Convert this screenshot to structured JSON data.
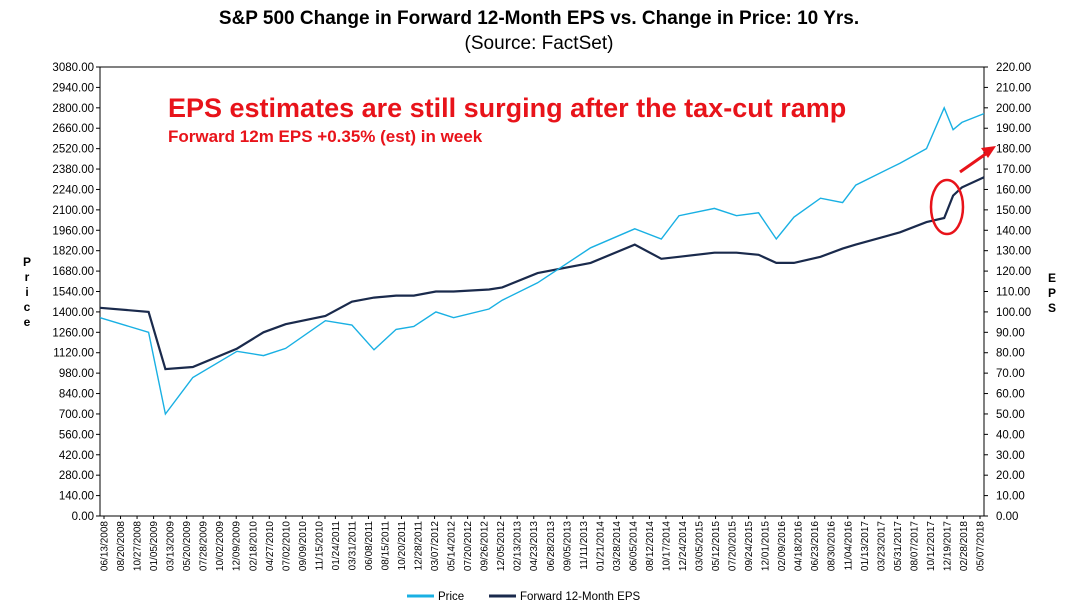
{
  "chart_data": {
    "type": "line",
    "title": "S&P 500 Change in Forward 12-Month EPS vs. Change in Price: 10 Yrs.",
    "subtitle": "(Source: FactSet)",
    "ylabel_left": "Price",
    "ylabel_right": "EPS",
    "ylim_left": [
      0,
      3080
    ],
    "ylim_right": [
      0,
      220
    ],
    "left_ticks": [
      "0.00",
      "140.00",
      "280.00",
      "420.00",
      "560.00",
      "700.00",
      "840.00",
      "980.00",
      "1120.00",
      "1260.00",
      "1400.00",
      "1540.00",
      "1680.00",
      "1820.00",
      "1960.00",
      "2100.00",
      "2240.00",
      "2380.00",
      "2520.00",
      "2660.00",
      "2800.00",
      "2940.00",
      "3080.00"
    ],
    "right_ticks": [
      "0.00",
      "10.00",
      "20.00",
      "30.00",
      "40.00",
      "50.00",
      "60.00",
      "70.00",
      "80.00",
      "90.00",
      "100.00",
      "110.00",
      "120.00",
      "130.00",
      "140.00",
      "150.00",
      "160.00",
      "170.00",
      "180.00",
      "190.00",
      "200.00",
      "210.00",
      "220.00"
    ],
    "x_ticks": [
      "06/13/2008",
      "08/20/2008",
      "10/27/2008",
      "01/05/2009",
      "03/13/2009",
      "05/20/2009",
      "07/28/2009",
      "10/02/2009",
      "12/09/2009",
      "02/18/2010",
      "04/27/2010",
      "07/02/2010",
      "09/09/2010",
      "11/15/2010",
      "01/24/2011",
      "03/31/2011",
      "06/08/2011",
      "08/15/2011",
      "10/20/2011",
      "12/28/2011",
      "03/07/2012",
      "05/14/2012",
      "07/20/2012",
      "09/26/2012",
      "12/05/2012",
      "02/13/2013",
      "04/23/2013",
      "06/28/2013",
      "09/05/2013",
      "11/11/2013",
      "01/21/2014",
      "03/28/2014",
      "06/05/2014",
      "08/12/2014",
      "10/17/2014",
      "12/24/2014",
      "03/05/2015",
      "05/12/2015",
      "07/20/2015",
      "09/24/2015",
      "12/01/2015",
      "02/09/2016",
      "04/18/2016",
      "06/23/2016",
      "08/30/2016",
      "11/04/2016",
      "01/13/2017",
      "03/23/2017",
      "05/31/2017",
      "08/07/2017",
      "10/12/2017",
      "12/19/2017",
      "02/28/2018",
      "05/07/2018"
    ],
    "x_years": [
      2008.45,
      2009.0,
      2009.19,
      2009.5,
      2010.0,
      2010.3,
      2010.55,
      2011.0,
      2011.3,
      2011.55,
      2011.8,
      2012.0,
      2012.25,
      2012.45,
      2012.85,
      2013.0,
      2013.4,
      2014.0,
      2014.5,
      2014.8,
      2015.0,
      2015.4,
      2015.65,
      2015.9,
      2016.1,
      2016.3,
      2016.6,
      2016.85,
      2017.0,
      2017.5,
      2017.8,
      2018.0,
      2018.1,
      2018.2,
      2018.45
    ],
    "series": [
      {
        "name": "Price",
        "color": "#19b0e3",
        "values": [
          1360,
          1260,
          700,
          950,
          1130,
          1100,
          1150,
          1340,
          1310,
          1140,
          1280,
          1300,
          1400,
          1360,
          1420,
          1480,
          1600,
          1840,
          1970,
          1900,
          2060,
          2110,
          2060,
          2080,
          1900,
          2050,
          2180,
          2150,
          2270,
          2420,
          2520,
          2800,
          2650,
          2700,
          2760
        ]
      },
      {
        "name": "Forward 12-Month EPS",
        "color": "#1a2a4c",
        "values": [
          102,
          100,
          72,
          73,
          82,
          90,
          94,
          98,
          105,
          107,
          108,
          108,
          110,
          110,
          111,
          112,
          119,
          124,
          133,
          126,
          127,
          129,
          129,
          128,
          124,
          124,
          127,
          131,
          133,
          139,
          144,
          146,
          157,
          161,
          166
        ]
      }
    ],
    "annotation_title": "EPS estimates are still surging after the tax-cut ramp",
    "annotation_sub": "Forward 12m EPS +0.35% (est) in week",
    "annotation_color": "#e8131a"
  }
}
